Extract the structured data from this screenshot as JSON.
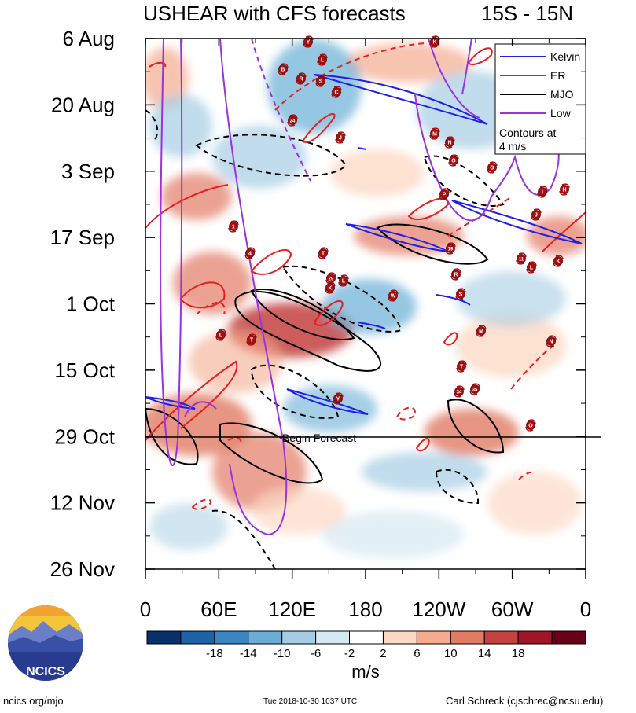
{
  "header": {
    "title": "USHEAR with CFS forecasts",
    "lat_band": "15S - 15N"
  },
  "chart_data": {
    "type": "heatmap",
    "title": "USHEAR with CFS forecasts",
    "subtitle": "15S - 15N",
    "x_ticks": [
      "0",
      "60E",
      "120E",
      "180",
      "120W",
      "60W",
      "0"
    ],
    "x_values": [
      0,
      60,
      120,
      180,
      240,
      300,
      360
    ],
    "xlim": [
      0,
      360
    ],
    "y_ticks": [
      "6 Aug",
      "20 Aug",
      "3 Sep",
      "17 Sep",
      "1 Oct",
      "15 Oct",
      "29 Oct",
      "12 Nov",
      "26 Nov"
    ],
    "y_values": [
      "2018-08-06",
      "2018-08-20",
      "2018-09-03",
      "2018-09-17",
      "2018-10-01",
      "2018-10-15",
      "2018-10-29",
      "2018-11-12",
      "2018-11-26"
    ],
    "ylim": [
      "2018-08-06",
      "2018-11-26"
    ],
    "forecast_start": "2018-10-29",
    "forecast_label": "Begin Forecast",
    "colorbar": {
      "unit": "m/s",
      "labels": [
        "-18",
        "-14",
        "-10",
        "-6",
        "-2",
        "2",
        "6",
        "10",
        "14",
        "18"
      ],
      "colors": [
        "#08306b",
        "#1e63a8",
        "#3b86c2",
        "#6aaed6",
        "#a6cde4",
        "#d6e8f2",
        "#ffffff",
        "#fcd9c6",
        "#f4ab8e",
        "#e27a64",
        "#c44140",
        "#a01527",
        "#6a0018"
      ]
    },
    "legend": {
      "placement": "top-right",
      "entries": [
        {
          "name": "Kelvin",
          "color": "#1f1fe6"
        },
        {
          "name": "ER",
          "color": "#e61f1f"
        },
        {
          "name": "MJO",
          "color": "#000000"
        },
        {
          "name": "Low",
          "color": "#9933dd"
        }
      ],
      "note_line1": "Contours at",
      "note_line2": "4 m/s"
    },
    "storm_labels": [
      "Y",
      "K",
      "L",
      "B",
      "R",
      "S",
      "C",
      "24",
      "J",
      "M",
      "N",
      "O",
      "G",
      "P",
      "I",
      "H",
      "J",
      "1",
      "4",
      "T",
      "19",
      "11",
      "L",
      "K",
      "29",
      "L",
      "K",
      "W",
      "R",
      "S",
      "M",
      "L",
      "T",
      "N",
      "T",
      "34",
      "35",
      "Y",
      "O"
    ]
  },
  "footer": {
    "left": "ncics.org/mjo",
    "middle": "Tue 2018-10-30 1037 UTC",
    "right": "Carl Schreck (cjschrec@ncsu.edu)",
    "logo_text": "NCICS"
  }
}
